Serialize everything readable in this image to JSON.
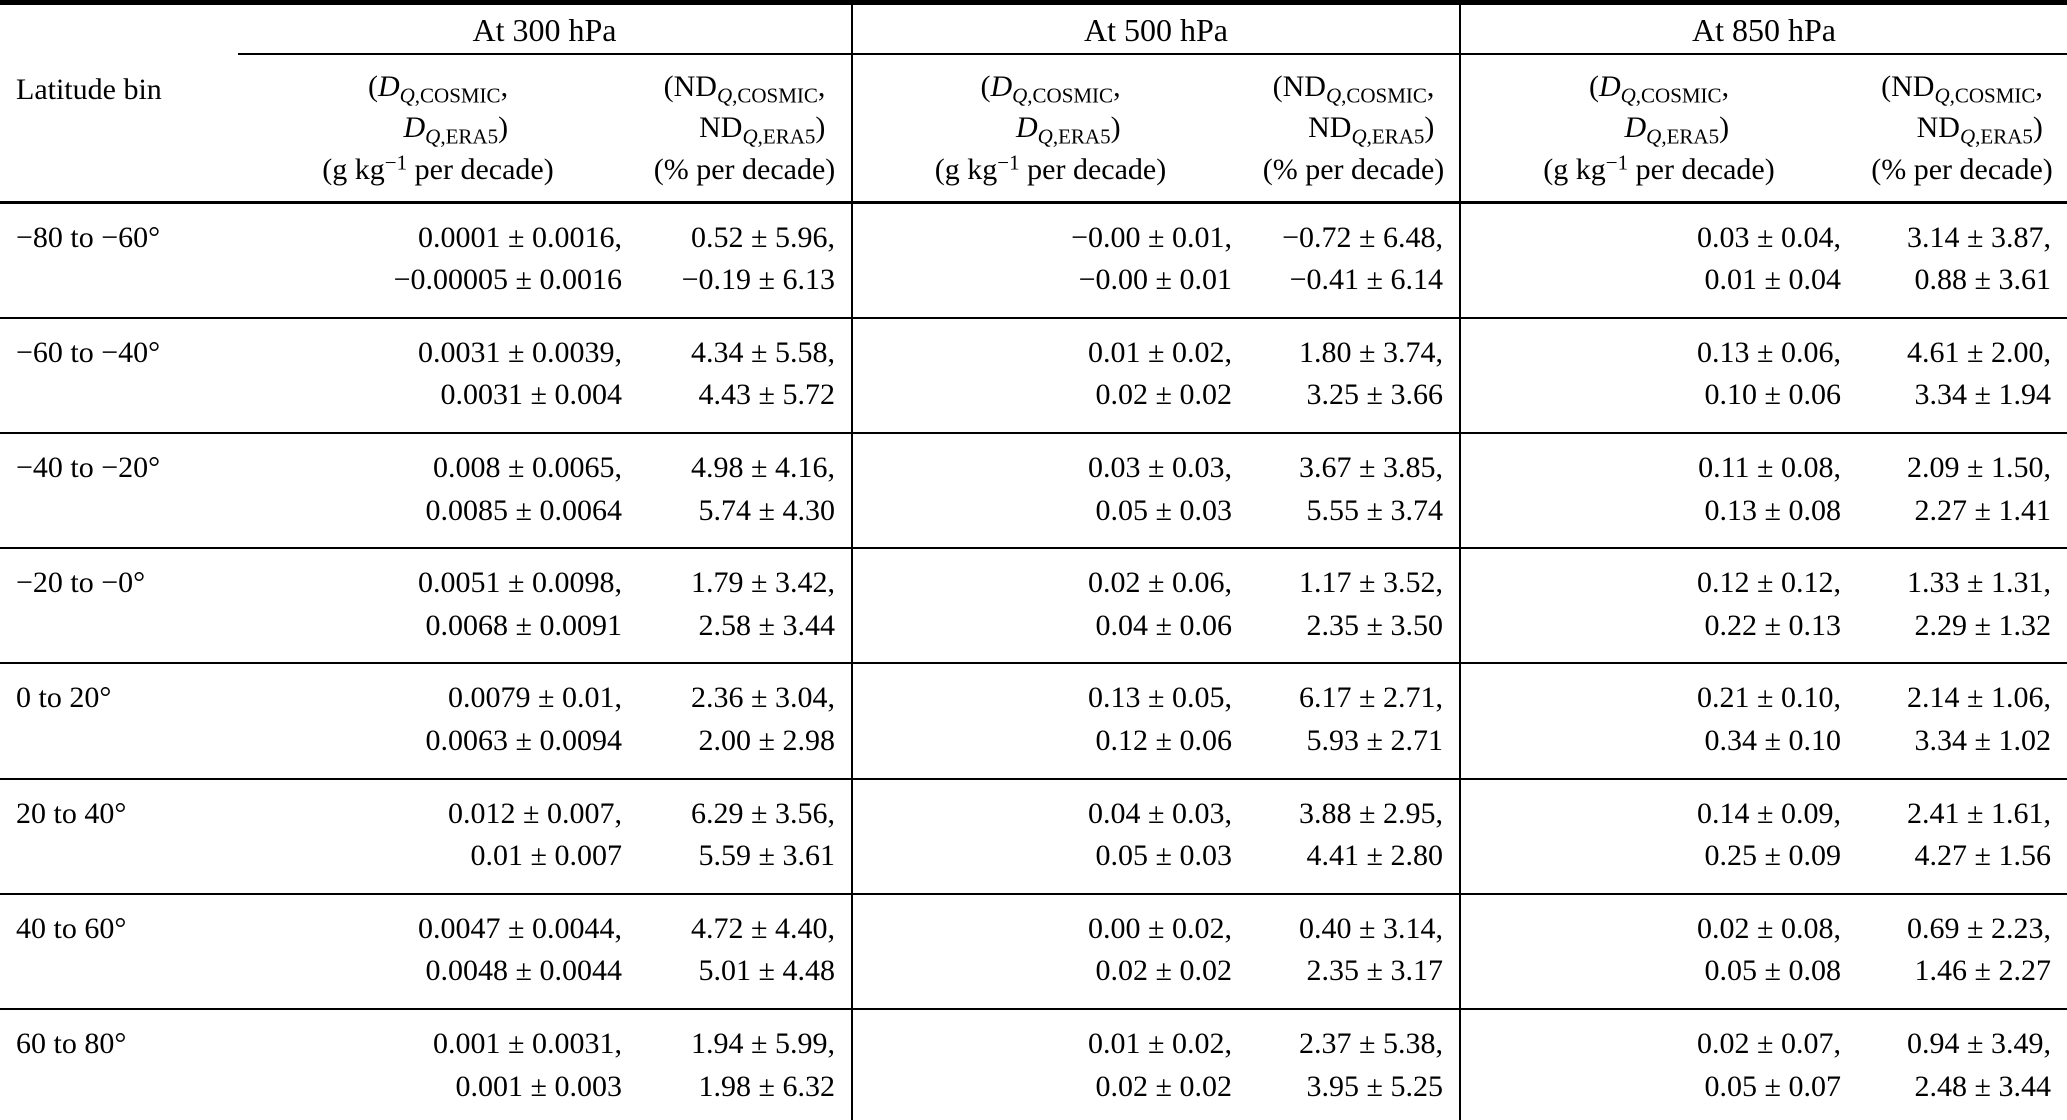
{
  "colors": {
    "text": "#000000",
    "background": "#ffffff",
    "rule": "#000000"
  },
  "table": {
    "group_headers": [
      {
        "label": "At 300 hPa"
      },
      {
        "label": "At 500 hPa"
      },
      {
        "label": "At 850 hPa"
      }
    ],
    "lat_header": "Latitude bin",
    "col_headers": {
      "d": {
        "l1_open": "(",
        "var": "D",
        "sub_i": "Q",
        "sub_cosmic": ",COSMIC",
        "sub_era5": ",ERA5",
        "l1_close": ",",
        "l2_close": ")",
        "units_pre": "(g kg",
        "units_sup": "−1",
        "units_post": " per decade)"
      },
      "nd": {
        "l1_open": "(",
        "var": "ND",
        "sub_i": "Q",
        "sub_cosmic": ",COSMIC",
        "sub_era5": ",ERA5",
        "l1_close": ",",
        "l2_close": ")",
        "units": "(% per decade)"
      }
    },
    "rows": [
      {
        "lat": "−80 to −60°",
        "cells": [
          [
            "0.0001 ± 0.0016,",
            "−0.00005 ± 0.0016"
          ],
          [
            "0.52 ± 5.96,",
            "−0.19 ± 6.13"
          ],
          [
            "−0.00 ± 0.01,",
            "−0.00 ± 0.01"
          ],
          [
            "−0.72 ± 6.48,",
            "−0.41 ± 6.14"
          ],
          [
            "0.03 ± 0.04,",
            "0.01 ± 0.04"
          ],
          [
            "3.14 ± 3.87,",
            "0.88 ± 3.61"
          ]
        ]
      },
      {
        "lat": "−60 to −40°",
        "cells": [
          [
            "0.0031 ± 0.0039,",
            "0.0031 ± 0.004"
          ],
          [
            "4.34 ± 5.58,",
            "4.43 ± 5.72"
          ],
          [
            "0.01 ± 0.02,",
            "0.02 ± 0.02"
          ],
          [
            "1.80 ± 3.74,",
            "3.25 ± 3.66"
          ],
          [
            "0.13 ± 0.06,",
            "0.10 ± 0.06"
          ],
          [
            "4.61 ± 2.00,",
            "3.34 ± 1.94"
          ]
        ]
      },
      {
        "lat": "−40 to −20°",
        "cells": [
          [
            "0.008 ± 0.0065,",
            "0.0085 ± 0.0064"
          ],
          [
            "4.98 ± 4.16,",
            "5.74 ± 4.30"
          ],
          [
            "0.03 ± 0.03,",
            "0.05 ± 0.03"
          ],
          [
            "3.67 ± 3.85,",
            "5.55 ± 3.74"
          ],
          [
            "0.11 ± 0.08,",
            "0.13 ± 0.08"
          ],
          [
            "2.09 ± 1.50,",
            "2.27 ± 1.41"
          ]
        ]
      },
      {
        "lat": "−20 to −0°",
        "cells": [
          [
            "0.0051 ± 0.0098,",
            "0.0068 ± 0.0091"
          ],
          [
            "1.79 ± 3.42,",
            "2.58 ± 3.44"
          ],
          [
            "0.02 ± 0.06,",
            "0.04 ± 0.06"
          ],
          [
            "1.17 ± 3.52,",
            "2.35 ± 3.50"
          ],
          [
            "0.12 ± 0.12,",
            "0.22 ± 0.13"
          ],
          [
            "1.33 ± 1.31,",
            "2.29 ± 1.32"
          ]
        ]
      },
      {
        "lat": "0 to 20°",
        "cells": [
          [
            "0.0079 ± 0.01,",
            "0.0063 ± 0.0094"
          ],
          [
            "2.36 ± 3.04,",
            "2.00 ± 2.98"
          ],
          [
            "0.13 ± 0.05,",
            "0.12 ± 0.06"
          ],
          [
            "6.17 ± 2.71,",
            "5.93 ± 2.71"
          ],
          [
            "0.21 ± 0.10,",
            "0.34 ± 0.10"
          ],
          [
            "2.14 ± 1.06,",
            "3.34 ± 1.02"
          ]
        ]
      },
      {
        "lat": "20 to 40°",
        "cells": [
          [
            "0.012 ± 0.007,",
            "0.01 ± 0.007"
          ],
          [
            "6.29 ± 3.56,",
            "5.59 ± 3.61"
          ],
          [
            "0.04 ± 0.03,",
            "0.05 ± 0.03"
          ],
          [
            "3.88 ± 2.95,",
            "4.41 ± 2.80"
          ],
          [
            "0.14 ± 0.09,",
            "0.25 ± 0.09"
          ],
          [
            "2.41 ± 1.61,",
            "4.27 ± 1.56"
          ]
        ]
      },
      {
        "lat": "40 to 60°",
        "cells": [
          [
            "0.0047 ± 0.0044,",
            "0.0048 ± 0.0044"
          ],
          [
            "4.72 ± 4.40,",
            "5.01 ± 4.48"
          ],
          [
            "0.00 ± 0.02,",
            "0.02 ± 0.02"
          ],
          [
            "0.40 ± 3.14,",
            "2.35 ± 3.17"
          ],
          [
            "0.02 ± 0.08,",
            "0.05 ± 0.08"
          ],
          [
            "0.69 ± 2.23,",
            "1.46 ± 2.27"
          ]
        ]
      },
      {
        "lat": "60 to 80°",
        "cells": [
          [
            "0.001 ± 0.0031,",
            "0.001 ± 0.003"
          ],
          [
            "1.94 ± 5.99,",
            "1.98 ± 6.32"
          ],
          [
            "0.01 ± 0.02,",
            "0.02 ± 0.02"
          ],
          [
            "2.37 ± 5.38,",
            "3.95 ± 5.25"
          ],
          [
            "0.02 ± 0.07,",
            "0.05 ± 0.07"
          ],
          [
            "0.94 ± 3.49,",
            "2.48 ± 3.44"
          ]
        ]
      }
    ]
  }
}
